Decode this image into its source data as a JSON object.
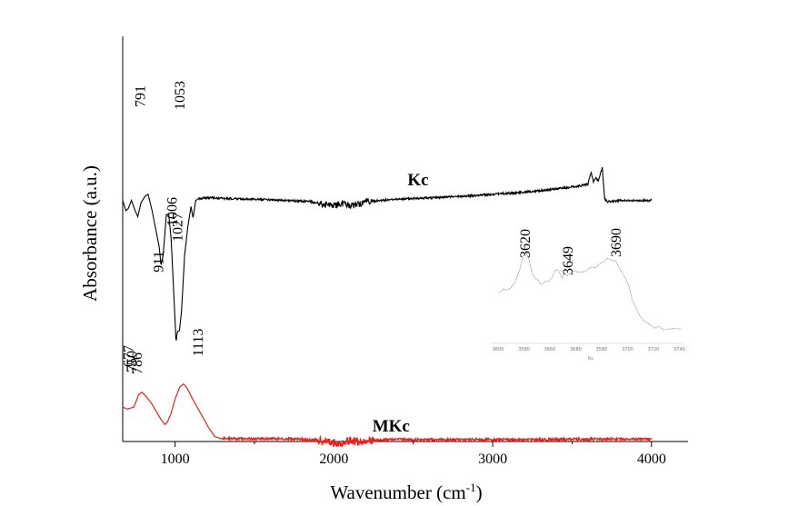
{
  "chart_data": {
    "type": "line",
    "title": "",
    "xlabel": "Wavenumber (cm",
    "xlabel_sup": "-1",
    "xlabel_close": ")",
    "ylabel": "Absorbance (a.u.)",
    "xlim": [
      670,
      4230
    ],
    "x_ticks": [
      1000,
      2000,
      3000,
      4000
    ],
    "x_tick_labels": [
      "1000",
      "2000",
      "3000",
      "4000"
    ],
    "y_ticks_shown": false,
    "grid": false,
    "legend": "none",
    "colors": {
      "MKc": "#e8201c",
      "Kc": "#000000",
      "inset": "#888888"
    },
    "series": [
      {
        "name": "MKc",
        "points": [
          [
            670,
            0.915
          ],
          [
            700,
            0.92
          ],
          [
            740,
            0.915
          ],
          [
            770,
            0.885
          ],
          [
            791,
            0.878
          ],
          [
            815,
            0.888
          ],
          [
            850,
            0.905
          ],
          [
            880,
            0.925
          ],
          [
            910,
            0.945
          ],
          [
            935,
            0.958
          ],
          [
            950,
            0.953
          ],
          [
            975,
            0.93
          ],
          [
            1000,
            0.895
          ],
          [
            1030,
            0.865
          ],
          [
            1053,
            0.858
          ],
          [
            1075,
            0.868
          ],
          [
            1110,
            0.895
          ],
          [
            1160,
            0.93
          ],
          [
            1210,
            0.965
          ],
          [
            1250,
            0.988
          ],
          [
            1290,
            0.993
          ],
          [
            1400,
            0.993
          ],
          [
            1600,
            0.993
          ],
          [
            1800,
            0.994
          ],
          [
            1900,
            0.996
          ],
          [
            1950,
            1.0
          ],
          [
            2000,
            1.004
          ],
          [
            2050,
            1.002
          ],
          [
            2100,
            0.997
          ],
          [
            2150,
            1.002
          ],
          [
            2200,
            0.999
          ],
          [
            2300,
            0.995
          ],
          [
            2500,
            0.995
          ],
          [
            3000,
            0.995
          ],
          [
            3400,
            0.995
          ],
          [
            3600,
            0.994
          ],
          [
            3800,
            0.994
          ],
          [
            4000,
            0.994
          ]
        ],
        "peak_labels": [
          {
            "x": 791,
            "label": "791"
          },
          {
            "x": 1053,
            "label": "1053"
          }
        ]
      },
      {
        "name": "Kc",
        "points": [
          [
            670,
            0.405
          ],
          [
            690,
            0.43
          ],
          [
            705,
            0.425
          ],
          [
            725,
            0.405
          ],
          [
            750,
            0.432
          ],
          [
            765,
            0.445
          ],
          [
            786,
            0.41
          ],
          [
            810,
            0.395
          ],
          [
            830,
            0.39
          ],
          [
            855,
            0.43
          ],
          [
            880,
            0.48
          ],
          [
            900,
            0.52
          ],
          [
            911,
            0.565
          ],
          [
            925,
            0.54
          ],
          [
            945,
            0.44
          ],
          [
            960,
            0.44
          ],
          [
            975,
            0.5
          ],
          [
            990,
            0.62
          ],
          [
            1006,
            0.755
          ],
          [
            1015,
            0.728
          ],
          [
            1027,
            0.727
          ],
          [
            1040,
            0.68
          ],
          [
            1060,
            0.54
          ],
          [
            1080,
            0.47
          ],
          [
            1100,
            0.42
          ],
          [
            1113,
            0.448
          ],
          [
            1130,
            0.405
          ],
          [
            1150,
            0.4
          ],
          [
            1200,
            0.398
          ],
          [
            1300,
            0.4
          ],
          [
            1500,
            0.402
          ],
          [
            1700,
            0.405
          ],
          [
            1850,
            0.408
          ],
          [
            1950,
            0.415
          ],
          [
            2000,
            0.418
          ],
          [
            2050,
            0.412
          ],
          [
            2100,
            0.418
          ],
          [
            2150,
            0.415
          ],
          [
            2200,
            0.408
          ],
          [
            2400,
            0.402
          ],
          [
            2800,
            0.395
          ],
          [
            3200,
            0.385
          ],
          [
            3500,
            0.372
          ],
          [
            3600,
            0.365
          ],
          [
            3620,
            0.335
          ],
          [
            3635,
            0.36
          ],
          [
            3649,
            0.35
          ],
          [
            3665,
            0.355
          ],
          [
            3690,
            0.325
          ],
          [
            3705,
            0.4
          ],
          [
            3720,
            0.408
          ],
          [
            3800,
            0.405
          ],
          [
            4000,
            0.405
          ]
        ],
        "peak_labels": [
          {
            "x": 677,
            "label": "677"
          },
          {
            "x": 750,
            "label": "750"
          },
          {
            "x": 786,
            "label": "786"
          },
          {
            "x": 911,
            "label": "911"
          },
          {
            "x": 1006,
            "label": "1006"
          },
          {
            "x": 1027,
            "label": "1027"
          },
          {
            "x": 1113,
            "label": "1113"
          }
        ]
      }
    ],
    "inset": {
      "series": "Kc",
      "peak_labels": [
        {
          "x": 3620,
          "label": "3620"
        },
        {
          "x": 3649,
          "label": "3649"
        },
        {
          "x": 3690,
          "label": "3690"
        }
      ],
      "tick_labels": [
        "3600",
        "3580",
        "3660",
        "3680",
        "3580",
        "3700",
        "3720",
        "3740"
      ],
      "axis_label": "Kc"
    }
  }
}
